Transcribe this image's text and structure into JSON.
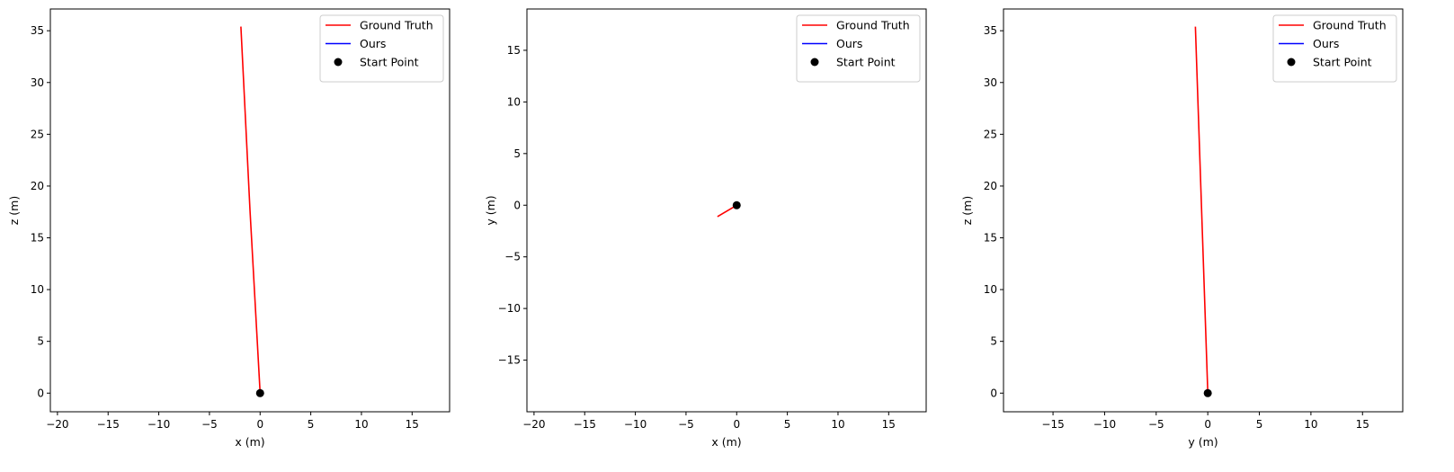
{
  "chart_data": [
    {
      "type": "line",
      "xlabel": "x (m)",
      "ylabel": "z (m)",
      "xlim": [
        -20.7,
        18.7
      ],
      "ylim": [
        -1.8,
        37.1
      ],
      "xticks": [
        -20,
        -15,
        -10,
        -5,
        0,
        5,
        10,
        15
      ],
      "yticks": [
        0,
        5,
        10,
        15,
        20,
        25,
        30,
        35
      ],
      "legend_position": "top-right",
      "series": [
        {
          "name": "Ground Truth",
          "color": "#ff0000",
          "marker": "line",
          "x": [
            0.0,
            -1.0,
            -1.9
          ],
          "y": [
            0.0,
            17.7,
            35.4
          ]
        },
        {
          "name": "Ours",
          "color": "#0000ff",
          "marker": "line",
          "x": [],
          "y": []
        },
        {
          "name": "Start Point",
          "color": "#000000",
          "marker": "point",
          "x": [
            0.0
          ],
          "y": [
            0.0
          ]
        }
      ]
    },
    {
      "type": "line",
      "xlabel": "x (m)",
      "ylabel": "y (m)",
      "xlim": [
        -20.7,
        18.7
      ],
      "ylim": [
        -20.0,
        19.0
      ],
      "xticks": [
        -20,
        -15,
        -10,
        -5,
        0,
        5,
        10,
        15
      ],
      "yticks": [
        -15,
        -10,
        -5,
        0,
        5,
        10,
        15
      ],
      "legend_position": "top-right",
      "series": [
        {
          "name": "Ground Truth",
          "color": "#ff0000",
          "marker": "line",
          "x": [
            0.0,
            -1.9
          ],
          "y": [
            0.0,
            -1.1
          ]
        },
        {
          "name": "Ours",
          "color": "#0000ff",
          "marker": "line",
          "x": [],
          "y": []
        },
        {
          "name": "Start Point",
          "color": "#000000",
          "marker": "point",
          "x": [
            0.0
          ],
          "y": [
            0.0
          ]
        }
      ]
    },
    {
      "type": "line",
      "xlabel": "y (m)",
      "ylabel": "z (m)",
      "xlim": [
        -19.8,
        18.9
      ],
      "ylim": [
        -1.8,
        37.1
      ],
      "xticks": [
        -15,
        -10,
        -5,
        0,
        5,
        10,
        15
      ],
      "yticks": [
        0,
        5,
        10,
        15,
        20,
        25,
        30,
        35
      ],
      "legend_position": "top-right",
      "series": [
        {
          "name": "Ground Truth",
          "color": "#ff0000",
          "marker": "line",
          "x": [
            0.0,
            -0.6,
            -1.2
          ],
          "y": [
            0.0,
            17.7,
            35.4
          ]
        },
        {
          "name": "Ours",
          "color": "#0000ff",
          "marker": "line",
          "x": [],
          "y": []
        },
        {
          "name": "Start Point",
          "color": "#000000",
          "marker": "point",
          "x": [
            0.0
          ],
          "y": [
            0.0
          ]
        }
      ]
    }
  ]
}
